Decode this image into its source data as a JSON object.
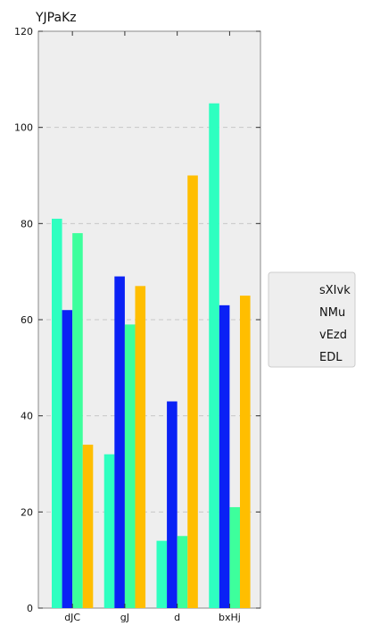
{
  "chart_data": {
    "type": "bar",
    "title": "YJPaKz",
    "xlabel": "",
    "ylabel": "",
    "categories": [
      "dJC",
      "gJ",
      "d",
      "bxHj"
    ],
    "ylim": [
      0,
      120
    ],
    "yticks": [
      0,
      20,
      40,
      60,
      80,
      100,
      120
    ],
    "grid": true,
    "legend_position": "right",
    "series": [
      {
        "name": "sXIvk",
        "color": "#2effc0",
        "values": [
          81,
          32,
          14,
          105
        ]
      },
      {
        "name": "NMu",
        "color": "#0a21f5",
        "values": [
          62,
          69,
          43,
          63
        ]
      },
      {
        "name": "vEzd",
        "color": "#3dff9c",
        "values": [
          78,
          59,
          15,
          21
        ]
      },
      {
        "name": "EDL",
        "color": "#ffbe00",
        "values": [
          34,
          67,
          90,
          65
        ]
      }
    ]
  }
}
